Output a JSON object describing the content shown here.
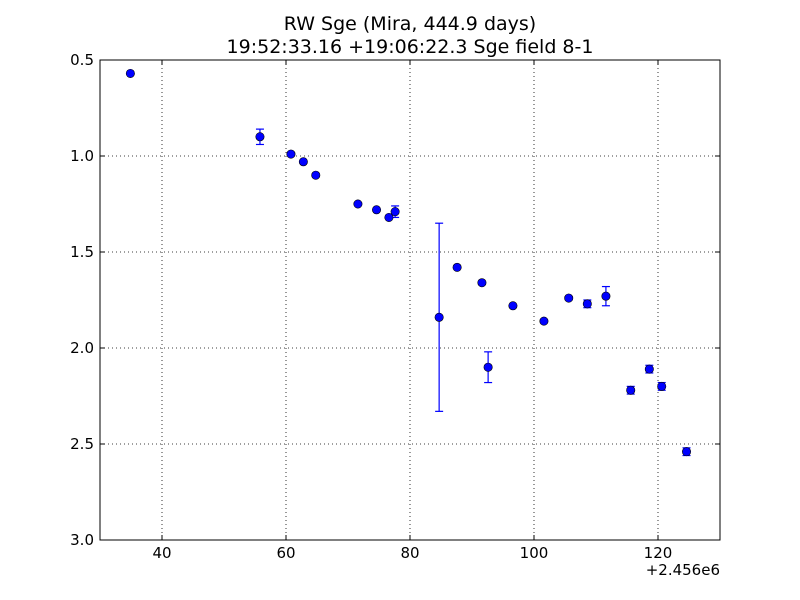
{
  "chart_data": {
    "type": "scatter",
    "title": "RW Sge (Mira, 444.9 days)",
    "subtitle": "19:52:33.16 +19:06:22.3 Sge field 8-1",
    "xlabel": "",
    "ylabel": "",
    "x_offset_label": "+2.456e6",
    "xlim": [
      30,
      130
    ],
    "ylim": [
      3.0,
      0.5
    ],
    "y_inverted": true,
    "grid": true,
    "x_ticks": [
      40,
      60,
      80,
      100,
      120
    ],
    "x_tick_labels": [
      "40",
      "60",
      "80",
      "100",
      "120"
    ],
    "y_ticks": [
      0.5,
      1.0,
      1.5,
      2.0,
      2.5,
      3.0
    ],
    "y_tick_labels": [
      "0.5",
      "1.0",
      "1.5",
      "2.0",
      "2.5",
      "3.0"
    ],
    "colors": {
      "marker": "#0000ff",
      "errorbar": "#0000ff",
      "grid": "#000000"
    },
    "series": [
      {
        "points": [
          {
            "x": 34.9,
            "y": 0.57,
            "err": 0.0
          },
          {
            "x": 55.8,
            "y": 0.9,
            "err": 0.04
          },
          {
            "x": 60.8,
            "y": 0.99,
            "err": 0.0
          },
          {
            "x": 62.8,
            "y": 1.03,
            "err": 0.0
          },
          {
            "x": 64.8,
            "y": 1.1,
            "err": 0.0
          },
          {
            "x": 71.6,
            "y": 1.25,
            "err": 0.0
          },
          {
            "x": 74.6,
            "y": 1.28,
            "err": 0.0
          },
          {
            "x": 76.6,
            "y": 1.32,
            "err": 0.0
          },
          {
            "x": 77.6,
            "y": 1.29,
            "err": 0.03
          },
          {
            "x": 84.7,
            "y": 1.84,
            "err": 0.49
          },
          {
            "x": 87.6,
            "y": 1.58,
            "err": 0.0
          },
          {
            "x": 91.6,
            "y": 1.66,
            "err": 0.0
          },
          {
            "x": 92.6,
            "y": 2.1,
            "err": 0.08
          },
          {
            "x": 96.6,
            "y": 1.78,
            "err": 0.0
          },
          {
            "x": 101.6,
            "y": 1.86,
            "err": 0.0
          },
          {
            "x": 105.6,
            "y": 1.74,
            "err": 0.0
          },
          {
            "x": 108.6,
            "y": 1.77,
            "err": 0.02
          },
          {
            "x": 111.6,
            "y": 1.73,
            "err": 0.05
          },
          {
            "x": 115.6,
            "y": 2.22,
            "err": 0.02
          },
          {
            "x": 118.6,
            "y": 2.11,
            "err": 0.02
          },
          {
            "x": 120.6,
            "y": 2.2,
            "err": 0.02
          },
          {
            "x": 124.6,
            "y": 2.54,
            "err": 0.02
          }
        ]
      }
    ]
  }
}
